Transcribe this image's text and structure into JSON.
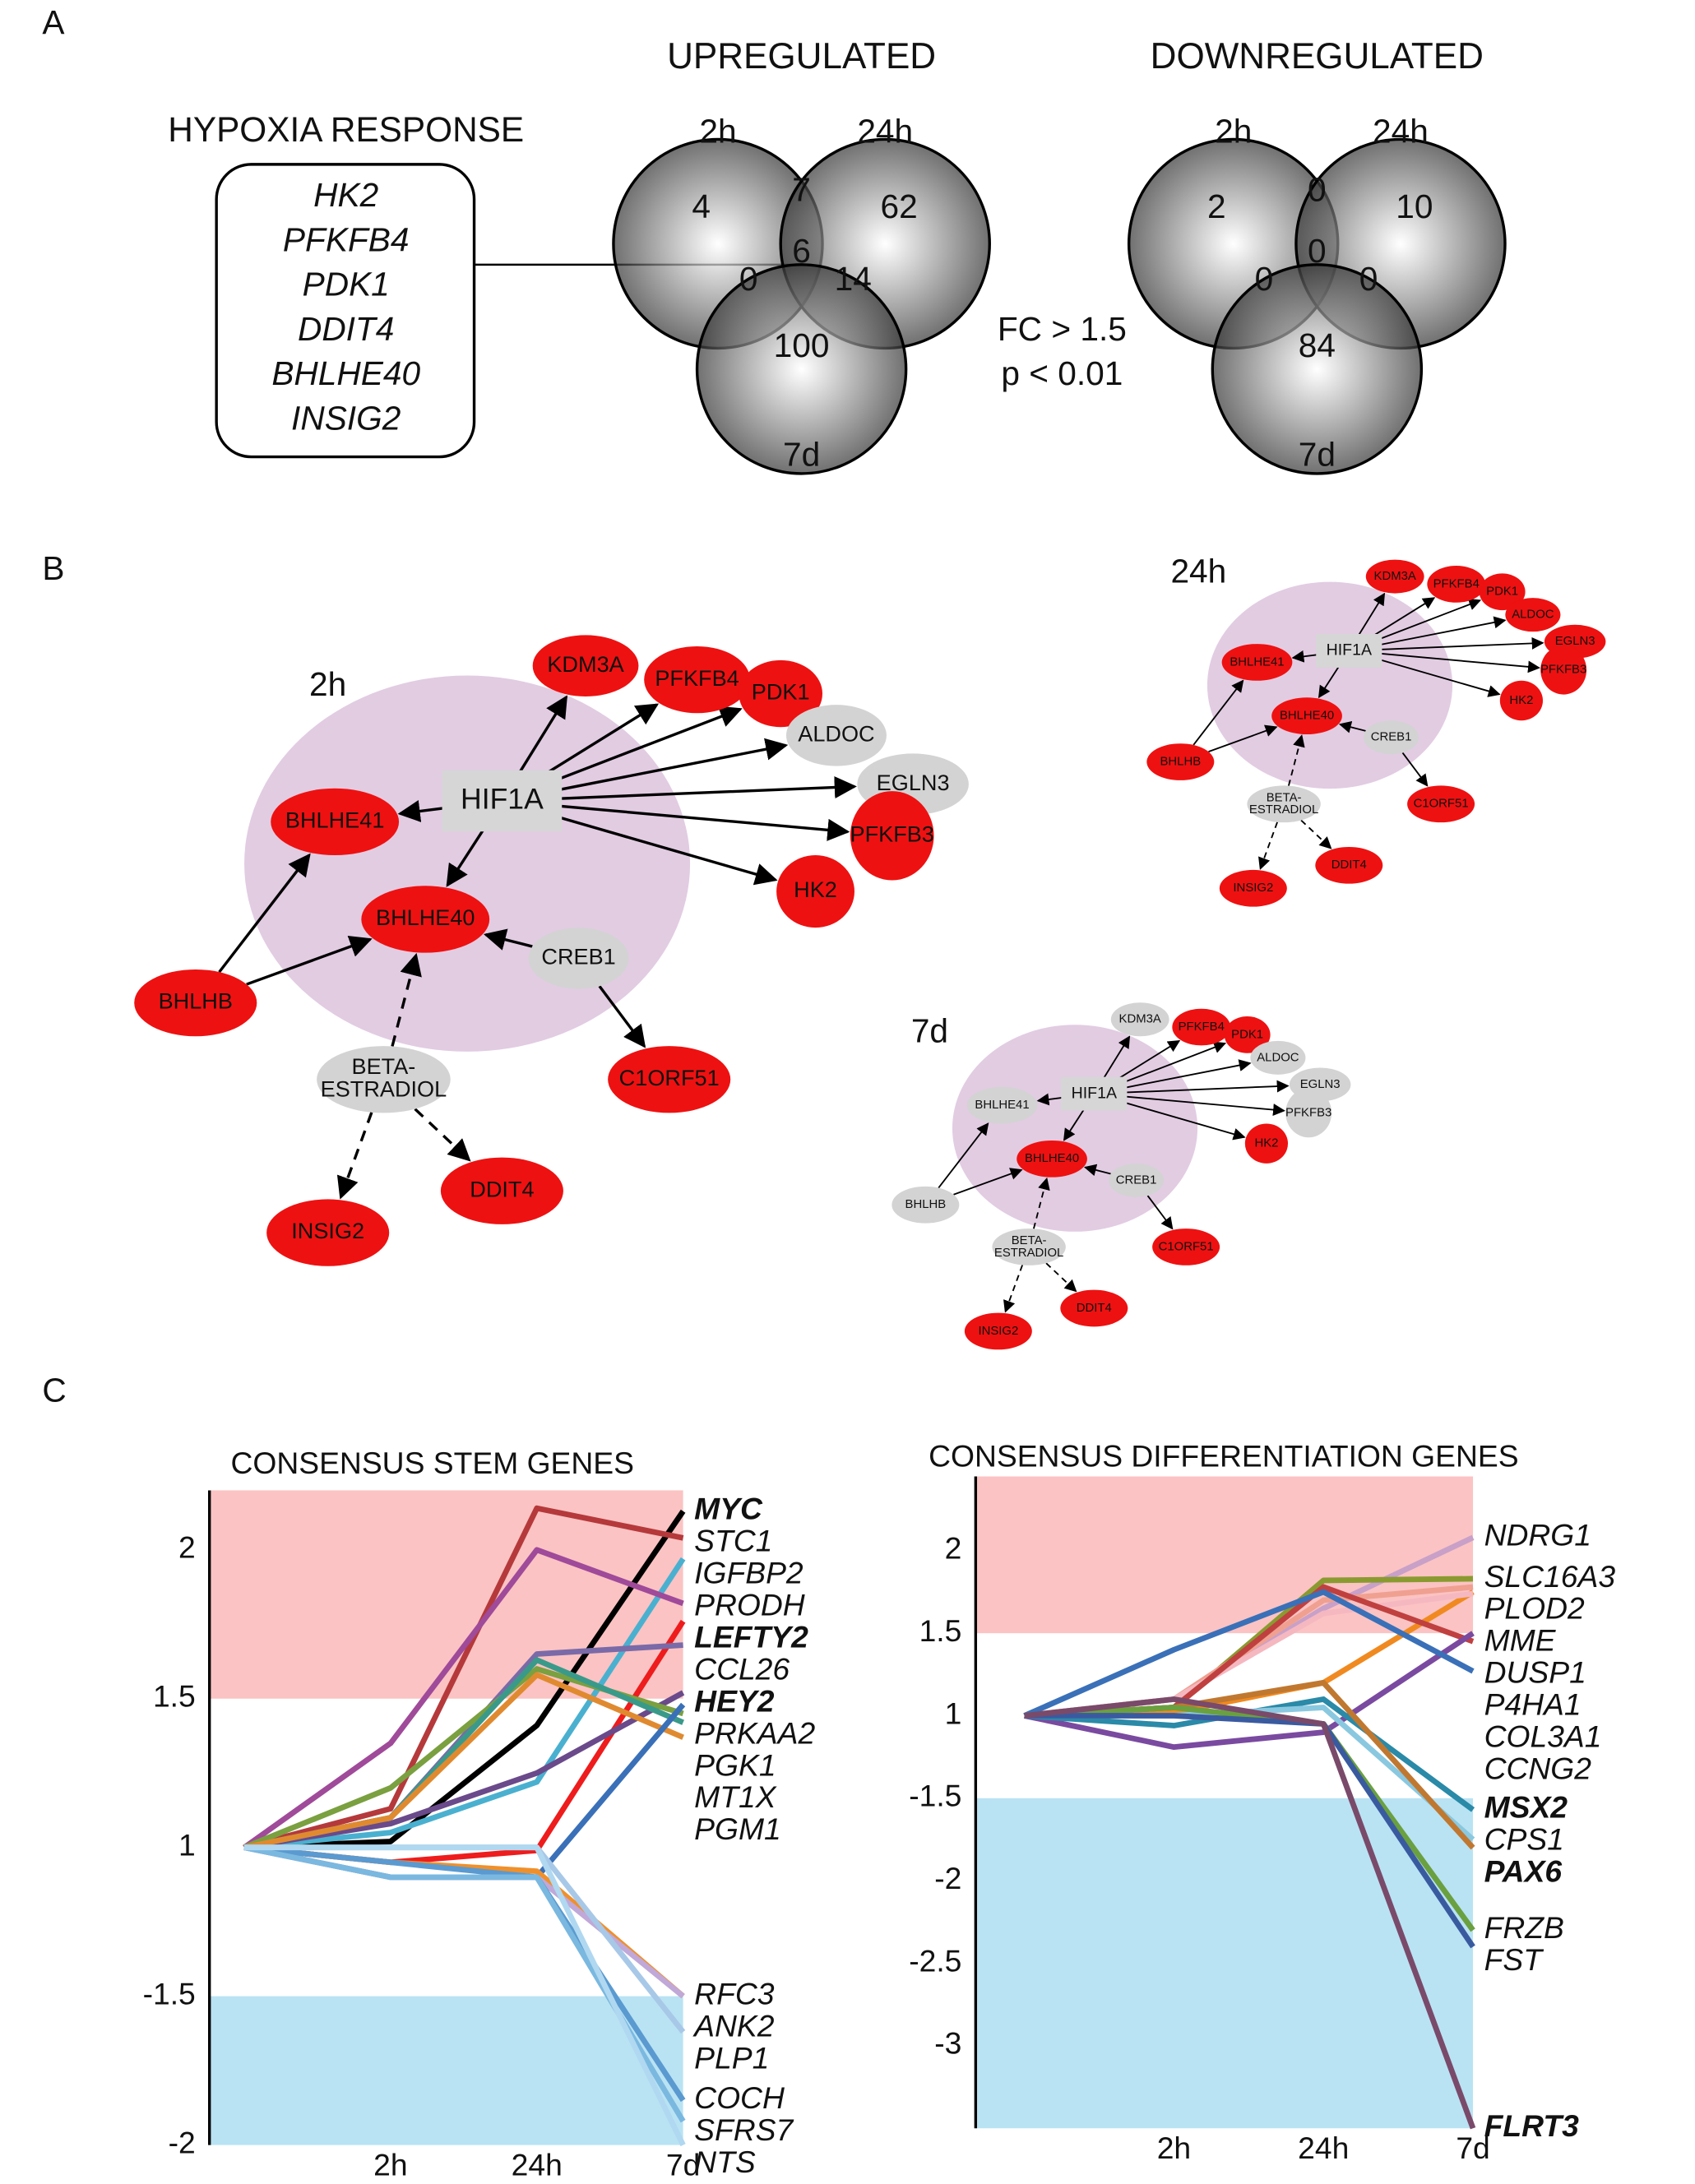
{
  "panel_labels": [
    "A",
    "B",
    "C"
  ],
  "hypoxia": {
    "title": "HYPOXIA RESPONSE",
    "genes": [
      "HK2",
      "PFKFB4",
      "PDK1",
      "DDIT4",
      "BHLHE40",
      "INSIG2"
    ]
  },
  "venns": [
    {
      "title": "UPREGULATED",
      "sets": [
        "2h",
        "24h",
        "7d"
      ],
      "counts": [
        4,
        7,
        62,
        0,
        6,
        14,
        100
      ]
    },
    {
      "title": "DOWNREGULATED",
      "sets": [
        "2h",
        "24h",
        "7d"
      ],
      "counts": [
        2,
        0,
        10,
        0,
        0,
        0,
        84
      ]
    }
  ],
  "criteria": [
    "FC > 1.5",
    "p < 0.01"
  ],
  "networks": [
    {
      "label": "2h",
      "nodes": [
        {
          "label": "HIF1A",
          "color": "#d6d6d6"
        },
        {
          "label": "KDM3A",
          "color": "#ee1111"
        },
        {
          "label": "PFKFB4",
          "color": "#ee1111"
        },
        {
          "label": "PDK1",
          "color": "#ee1111"
        },
        {
          "label": "ALDOC",
          "color": "#d3d3d3"
        },
        {
          "label": "EGLN3",
          "color": "#d3d3d3"
        },
        {
          "label": "PFKFB3",
          "color": "#ee1111"
        },
        {
          "label": "HK2",
          "color": "#ee1111"
        },
        {
          "label": "BHLHE41",
          "color": "#ee1111"
        },
        {
          "label": "BHLHE40",
          "color": "#ee1111"
        },
        {
          "label": "CREB1",
          "color": "#d3d3d3"
        },
        {
          "label": "BHLHB",
          "color": "#ee1111"
        },
        {
          "label": [
            "BETA-",
            "ESTRADIOL"
          ],
          "color": "#d3d3d3"
        },
        {
          "label": "C1ORF51",
          "color": "#ee1111"
        },
        {
          "label": "INSIG2",
          "color": "#ee1111"
        },
        {
          "label": "DDIT4",
          "color": "#ee1111"
        }
      ]
    },
    {
      "label": "24h",
      "nodes": [
        {
          "label": "HIF1A",
          "color": "#d6d6d6"
        },
        {
          "label": "KDM3A",
          "color": "#ee1111"
        },
        {
          "label": "PFKFB4",
          "color": "#ee1111"
        },
        {
          "label": "PDK1",
          "color": "#ee1111"
        },
        {
          "label": "ALDOC",
          "color": "#ee1111"
        },
        {
          "label": "EGLN3",
          "color": "#ee1111"
        },
        {
          "label": "PFKFB3",
          "color": "#ee1111"
        },
        {
          "label": "HK2",
          "color": "#ee1111"
        },
        {
          "label": "BHLHE41",
          "color": "#ee1111"
        },
        {
          "label": "BHLHE40",
          "color": "#ee1111"
        },
        {
          "label": "CREB1",
          "color": "#d3d3d3"
        },
        {
          "label": "BHLHB",
          "color": "#ee1111"
        },
        {
          "label": [
            "BETA-",
            "ESTRADIOL"
          ],
          "color": "#d3d3d3"
        },
        {
          "label": "C1ORF51",
          "color": "#ee1111"
        },
        {
          "label": "INSIG2",
          "color": "#ee1111"
        },
        {
          "label": "DDIT4",
          "color": "#ee1111"
        }
      ]
    },
    {
      "label": "7d",
      "nodes": [
        {
          "label": "HIF1A",
          "color": "#d6d6d6"
        },
        {
          "label": "KDM3A",
          "color": "#d3d3d3"
        },
        {
          "label": "PFKFB4",
          "color": "#ee1111"
        },
        {
          "label": "PDK1",
          "color": "#ee1111"
        },
        {
          "label": "ALDOC",
          "color": "#d3d3d3"
        },
        {
          "label": "EGLN3",
          "color": "#d3d3d3"
        },
        {
          "label": "PFKFB3",
          "color": "#d3d3d3"
        },
        {
          "label": "HK2",
          "color": "#ee1111"
        },
        {
          "label": "BHLHE41",
          "color": "#d3d3d3"
        },
        {
          "label": "BHLHE40",
          "color": "#ee1111"
        },
        {
          "label": "CREB1",
          "color": "#d3d3d3"
        },
        {
          "label": "BHLHB",
          "color": "#d3d3d3"
        },
        {
          "label": [
            "BETA-",
            "ESTRADIOL"
          ],
          "color": "#d3d3d3"
        },
        {
          "label": "C1ORF51",
          "color": "#ee1111"
        },
        {
          "label": "INSIG2",
          "color": "#ee1111"
        },
        {
          "label": "DDIT4",
          "color": "#ee1111"
        }
      ]
    }
  ],
  "chart_data": [
    {
      "type": "line",
      "title": "CONSENSUS STEM GENES",
      "categories": [
        null,
        "2h",
        "24h",
        "7d"
      ],
      "yscale": "fold-change",
      "ylim": [
        -2,
        2.2
      ],
      "yticks": [
        -2,
        -1.5,
        1,
        1.5,
        2
      ],
      "bands": [
        {
          "range": [
            1.5,
            2.2
          ],
          "color": "#fbc3c3"
        },
        {
          "range": [
            -2,
            -1.5
          ],
          "color": "#b9e3f3"
        }
      ],
      "series": [
        {
          "name": "MYC",
          "color": "#000000",
          "bold": true,
          "values": [
            1,
            1.02,
            1.41,
            2.13
          ]
        },
        {
          "name": "STC1",
          "color": "#b5393b",
          "values": [
            1,
            1.13,
            2.14,
            2.04
          ]
        },
        {
          "name": "IGFBP2",
          "color": "#4ab0d0",
          "values": [
            1,
            1.05,
            1.22,
            1.97
          ]
        },
        {
          "name": "PRODH",
          "color": "#a04a9a",
          "values": [
            1,
            1.35,
            2.0,
            1.82
          ]
        },
        {
          "name": "LEFTY2",
          "color": "#ee1c1c",
          "bold": true,
          "values": [
            1,
            -1.05,
            -1.01,
            1.76
          ]
        },
        {
          "name": "CCL26",
          "color": "#7a6aa8",
          "values": [
            1,
            1.1,
            1.65,
            1.68
          ]
        },
        {
          "name": "HEY2",
          "color": "#6a4a8a",
          "bold": true,
          "values": [
            1,
            1.08,
            1.25,
            1.52
          ]
        },
        {
          "name": "PGK1",
          "color": "#7aa040",
          "values": [
            1,
            1.2,
            1.6,
            1.45
          ]
        },
        {
          "name": "MT1X",
          "color": "#3a9a8a",
          "values": [
            1,
            1.1,
            1.63,
            1.42
          ]
        },
        {
          "name": "PGM1",
          "color": "#e08a30",
          "values": [
            1,
            1.1,
            1.58,
            1.37
          ]
        },
        {
          "name": "PRKAA2",
          "color": "#3a70b8",
          "values": [
            1,
            -1.1,
            -1.1,
            1.48
          ]
        },
        {
          "name": "RFC3",
          "color": "#f0902a",
          "values": [
            1,
            -1.05,
            -1.08,
            -1.5
          ]
        },
        {
          "name": "ANK2",
          "color": "#c0a8d8",
          "values": [
            1,
            -1.1,
            -1.1,
            -1.5
          ]
        },
        {
          "name": "PLP1",
          "color": "#a8c8e8",
          "values": [
            1,
            1,
            1,
            -1.62
          ]
        },
        {
          "name": "COCH",
          "color": "#5a9ad0",
          "values": [
            1,
            -1.05,
            -1.1,
            -1.85
          ]
        },
        {
          "name": "SFRS7",
          "color": "#7ab8e0",
          "values": [
            1,
            -1.1,
            -1.1,
            -1.92
          ]
        },
        {
          "name": "NTS",
          "color": "#b0d8f0",
          "values": [
            1,
            1,
            1,
            -2
          ]
        }
      ]
    },
    {
      "type": "line",
      "title": "CONSENSUS DIFFERENTIATION GENES",
      "categories": [
        null,
        "2h",
        "24h",
        "7d"
      ],
      "yscale": "fold-change",
      "ylim": [
        -3.5,
        2.45
      ],
      "yticks": [
        -3,
        -2.5,
        -2,
        -1.5,
        1,
        1.5,
        2
      ],
      "bands": [
        {
          "range": [
            1.5,
            2.45
          ],
          "color": "#fbc3c3"
        },
        {
          "range": [
            -3.5,
            -1.5
          ],
          "color": "#b9e3f3"
        }
      ],
      "series": [
        {
          "name": "NDRG1",
          "color": "#c8a0c8",
          "values": [
            1,
            1.1,
            1.65,
            2.08
          ]
        },
        {
          "name": "SLC16A3",
          "color": "#8a9a30",
          "values": [
            1,
            1.05,
            1.82,
            1.83
          ]
        },
        {
          "name": "PLOD2",
          "color": "#f0a090",
          "values": [
            1,
            1.1,
            1.7,
            1.78
          ]
        },
        {
          "name": "MME",
          "color": "#f08a20",
          "values": [
            1,
            1.02,
            1.2,
            1.75
          ]
        },
        {
          "name": "DUSP1",
          "color": "#f5b8c0",
          "values": [
            1,
            1.1,
            1.62,
            1.74
          ]
        },
        {
          "name": "COL3A1",
          "color": "#c04040",
          "values": [
            1,
            1.05,
            1.78,
            1.45
          ]
        },
        {
          "name": "P4HA1",
          "color": "#7a4aa0",
          "values": [
            1,
            -1.19,
            -1.1,
            1.5
          ]
        },
        {
          "name": "CCNG2",
          "color": "#3a70b8",
          "values": [
            1,
            1.4,
            1.75,
            1.27
          ]
        },
        {
          "name": "MSX2",
          "color": "#2a8aa8",
          "bold": true,
          "values": [
            1,
            -1.06,
            1.1,
            -1.57
          ]
        },
        {
          "name": "CPS1",
          "color": "#8ac8e0",
          "values": [
            1,
            1,
            1.05,
            -1.75
          ]
        },
        {
          "name": "PAX6",
          "color": "#c07830",
          "bold": true,
          "values": [
            1,
            1.05,
            1.2,
            -1.8
          ]
        },
        {
          "name": "FRZB",
          "color": "#6aa040",
          "values": [
            1,
            1.05,
            -1.05,
            -2.3
          ]
        },
        {
          "name": "FST",
          "color": "#3a5aa0",
          "values": [
            1,
            1,
            -1.05,
            -2.4
          ]
        },
        {
          "name": "FLRT3",
          "color": "#7a4a6a",
          "bold": true,
          "values": [
            1,
            1.1,
            -1.05,
            -3.5
          ]
        }
      ]
    }
  ]
}
